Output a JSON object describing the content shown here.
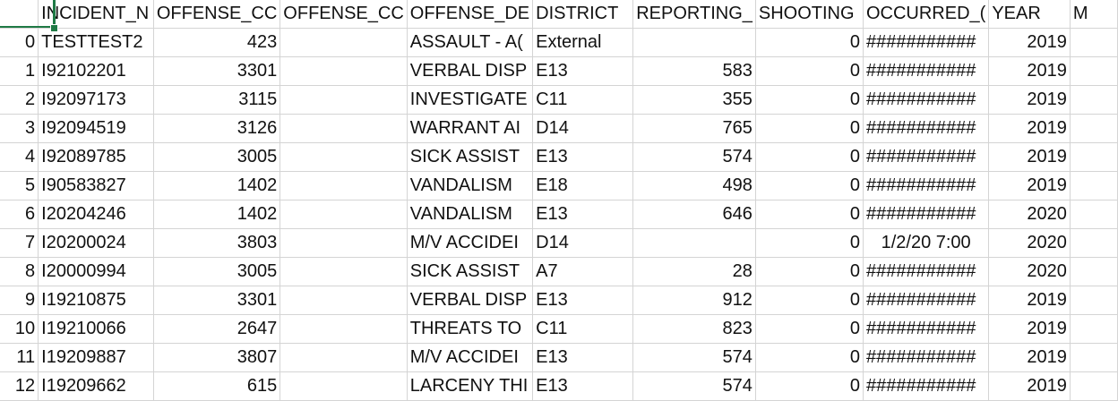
{
  "headers": [
    "",
    "INCIDENT_N",
    "OFFENSE_CC",
    "OFFENSE_CC",
    "OFFENSE_DE",
    "DISTRICT",
    "REPORTING_",
    "SHOOTING",
    "OCCURRED_(",
    "YEAR",
    "M"
  ],
  "rows": [
    [
      "0",
      "TESTTEST2",
      "423",
      "",
      "ASSAULT - A(",
      "External",
      "",
      "0",
      "###########",
      "2019",
      ""
    ],
    [
      "1",
      "I92102201",
      "3301",
      "",
      "VERBAL DISP",
      "E13",
      "583",
      "0",
      "###########",
      "2019",
      ""
    ],
    [
      "2",
      "I92097173",
      "3115",
      "",
      "INVESTIGATE",
      "C11",
      "355",
      "0",
      "###########",
      "2019",
      ""
    ],
    [
      "3",
      "I92094519",
      "3126",
      "",
      "WARRANT AI",
      "D14",
      "765",
      "0",
      "###########",
      "2019",
      ""
    ],
    [
      "4",
      "I92089785",
      "3005",
      "",
      "SICK ASSIST",
      "E13",
      "574",
      "0",
      "###########",
      "2019",
      ""
    ],
    [
      "5",
      "I90583827",
      "1402",
      "",
      "VANDALISM",
      "E18",
      "498",
      "0",
      "###########",
      "2019",
      ""
    ],
    [
      "6",
      "I20204246",
      "1402",
      "",
      "VANDALISM",
      "E13",
      "646",
      "0",
      "###########",
      "2020",
      ""
    ],
    [
      "7",
      "I20200024",
      "3803",
      "",
      "M/V ACCIDEI",
      "D14",
      "",
      "0",
      "1/2/20 7:00",
      "2020",
      ""
    ],
    [
      "8",
      "I20000994",
      "3005",
      "",
      "SICK ASSIST",
      "A7",
      "28",
      "0",
      "###########",
      "2020",
      ""
    ],
    [
      "9",
      "I19210875",
      "3301",
      "",
      "VERBAL DISP",
      "E13",
      "912",
      "0",
      "###########",
      "2019",
      ""
    ],
    [
      "10",
      "I19210066",
      "2647",
      "",
      "THREATS TO",
      "C11",
      "823",
      "0",
      "###########",
      "2019",
      ""
    ],
    [
      "11",
      "I19209887",
      "3807",
      "",
      "M/V ACCIDEI",
      "E13",
      "574",
      "0",
      "###########",
      "2019",
      ""
    ],
    [
      "12",
      "I19209662",
      "615",
      "",
      "LARCENY THI",
      "E13",
      "574",
      "0",
      "###########",
      "2019",
      ""
    ]
  ],
  "colors": {
    "selection": "#1f7a45",
    "gridline": "#d4d4d4"
  }
}
